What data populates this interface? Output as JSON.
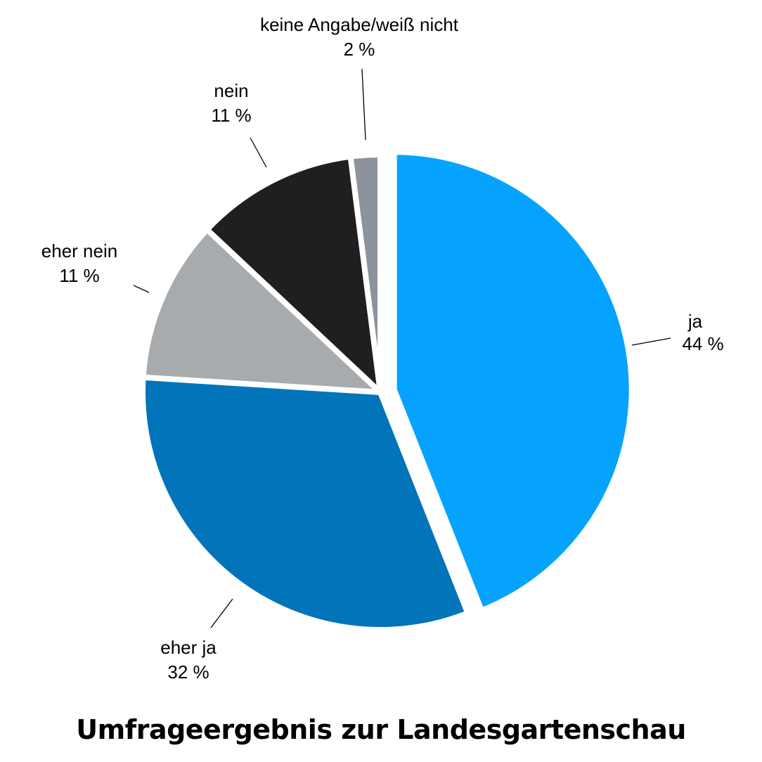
{
  "chart_data": {
    "type": "pie",
    "title": "Umfrageergebnis zur Landesgartenschau",
    "start_angle_deg": 0,
    "direction": "clockwise",
    "slices": [
      {
        "label": "ja",
        "value": 44,
        "value_label": "44 %",
        "color": "#05a3fe",
        "exploded": true
      },
      {
        "label": "eher ja",
        "value": 32,
        "value_label": "32 %",
        "color": "#0274b9",
        "exploded": false
      },
      {
        "label": "eher nein",
        "value": 11,
        "value_label": "11 %",
        "color": "#a8abae",
        "exploded": false
      },
      {
        "label": "nein",
        "value": 11,
        "value_label": "11 %",
        "color": "#1f1f21",
        "exploded": false
      },
      {
        "label": "keine Angabe/weiß nicht",
        "value": 2,
        "value_label": "2 %",
        "color": "#8d939c",
        "exploded": false
      }
    ],
    "legend": "none"
  }
}
